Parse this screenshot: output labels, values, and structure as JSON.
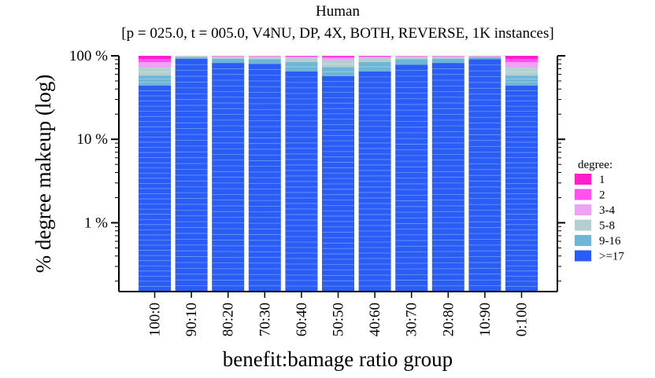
{
  "chart_data": {
    "type": "bar",
    "stacked": true,
    "scale": "log",
    "title": "Human",
    "subtitle": "[p = 025.0, t = 005.0, V4NU, DP, 4X, BOTH, REVERSE, 1K instances]",
    "xlabel": "benefit:bamage ratio group",
    "ylabel": "% degree makeup (log)",
    "ylim": [
      0.15,
      100
    ],
    "y_ticks": [
      {
        "value": 100,
        "label": "100 %"
      },
      {
        "value": 10,
        "label": "10 %"
      },
      {
        "value": 1,
        "label": "1 %"
      }
    ],
    "categories": [
      "100:0",
      "90:10",
      "80:20",
      "70:30",
      "60:40",
      "50:50",
      "40:60",
      "30:70",
      "20:80",
      "10:90",
      "0:100"
    ],
    "legend": {
      "title": "degree:",
      "position": "right",
      "items": [
        {
          "label": "1",
          "color": "#ff1fc8"
        },
        {
          "label": "2",
          "color": "#ff52ee"
        },
        {
          "label": "3-4",
          "color": "#eda3f3"
        },
        {
          "label": "5-8",
          "color": "#b4cfcf"
        },
        {
          "label": "9-16",
          "color": "#6eb6d6"
        },
        {
          "label": ">=17",
          "color": "#2a5cf6"
        }
      ]
    },
    "series": [
      {
        "name": "1",
        "values": [
          8.5,
          0,
          0,
          0,
          1,
          2,
          1,
          0,
          0,
          0,
          8.5
        ]
      },
      {
        "name": "2",
        "values": [
          8,
          0,
          1,
          1,
          2,
          4,
          2,
          1,
          1,
          1,
          8
        ]
      },
      {
        "name": "3-4",
        "values": [
          11.5,
          1,
          2,
          2,
          3,
          6,
          3,
          2,
          2,
          1,
          11.5
        ]
      },
      {
        "name": "5-8",
        "values": [
          14,
          3,
          5,
          6,
          10,
          15,
          10,
          6,
          5,
          2,
          14
        ]
      },
      {
        "name": "9-16",
        "values": [
          14,
          4,
          10,
          11,
          19,
          16,
          19,
          13,
          10,
          5,
          14
        ]
      },
      {
        "name": ">=17",
        "values": [
          44,
          92,
          82,
          80,
          65,
          57,
          65,
          78,
          82,
          91,
          44
        ]
      }
    ],
    "ones_line_colors": [
      "#ffffff"
    ]
  }
}
